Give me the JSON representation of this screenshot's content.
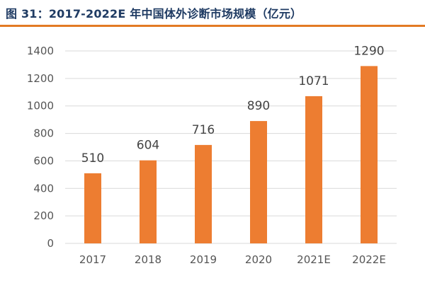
{
  "figure": {
    "title": "图 31：2017-2022E 年中国体外诊断市场规模（亿元）"
  },
  "chart_data": {
    "type": "bar",
    "categories": [
      "2017",
      "2018",
      "2019",
      "2020",
      "2021E",
      "2022E"
    ],
    "values": [
      510,
      604,
      716,
      890,
      1071,
      1290
    ],
    "title": "",
    "xlabel": "",
    "ylabel": "",
    "ylim": [
      0,
      1400
    ],
    "yticks": [
      0,
      200,
      400,
      600,
      800,
      1000,
      1200,
      1400
    ],
    "grid": true,
    "bar_color": "#ed7d31",
    "grid_color": "#d9d9d9",
    "legend": "none"
  }
}
